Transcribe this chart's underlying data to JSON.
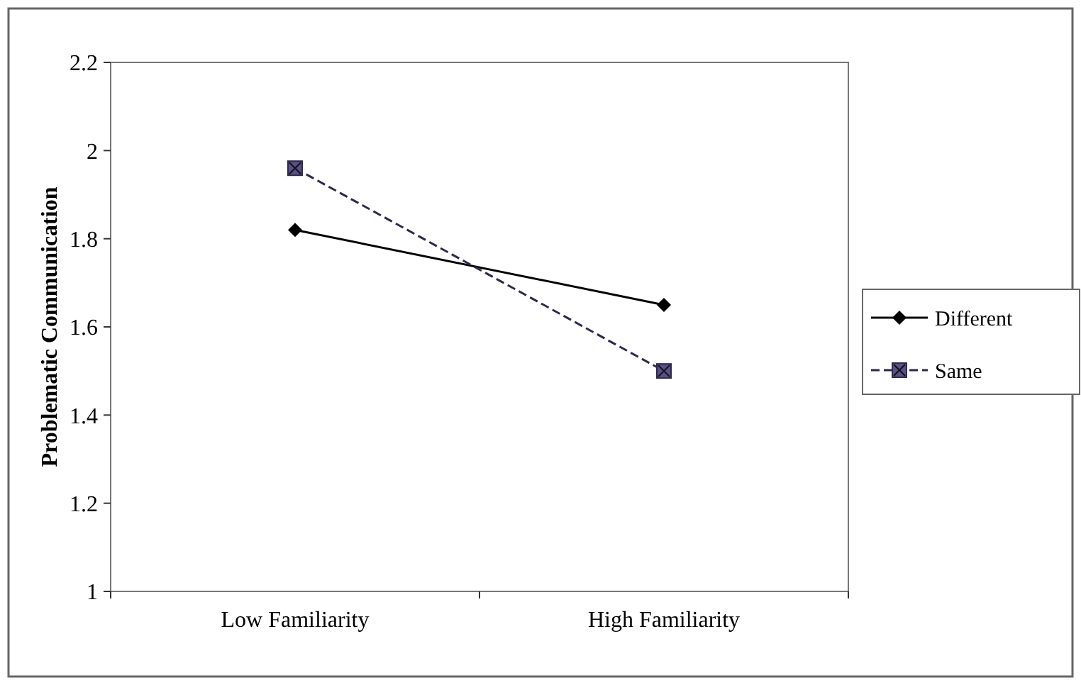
{
  "chart_data": {
    "type": "line",
    "ylabel": "Problematic Communication",
    "categories": [
      "Low Familiarity",
      "High Familiarity"
    ],
    "ylim": [
      1,
      2.2
    ],
    "yticks": [
      1,
      1.2,
      1.4,
      1.6,
      1.8,
      2,
      2.2
    ],
    "grid": false,
    "legend": "right",
    "series": [
      {
        "name": "Different",
        "color": "#000000",
        "values": [
          1.82,
          1.65
        ],
        "marker": "diamond",
        "line_style": "solid"
      },
      {
        "name": "Same",
        "color": "#2b2a4a",
        "values": [
          1.96,
          1.5
        ],
        "marker": "square",
        "line_style": "dashed"
      }
    ]
  }
}
